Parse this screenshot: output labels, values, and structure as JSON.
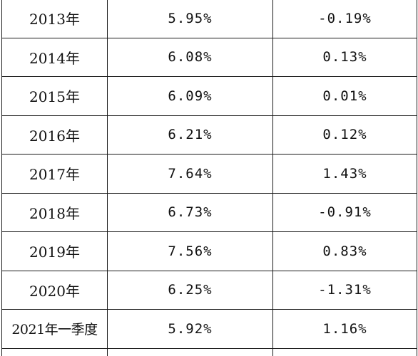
{
  "table": {
    "rows": [
      {
        "year": "2013年",
        "rate": "5.95%",
        "change": "-0.19%"
      },
      {
        "year": "2014年",
        "rate": "6.08%",
        "change": "0.13%"
      },
      {
        "year": "2015年",
        "rate": "6.09%",
        "change": "0.01%"
      },
      {
        "year": "2016年",
        "rate": "6.21%",
        "change": "0.12%"
      },
      {
        "year": "2017年",
        "rate": "7.64%",
        "change": "1.43%"
      },
      {
        "year": "2018年",
        "rate": "6.73%",
        "change": "-0.91%"
      },
      {
        "year": "2019年",
        "rate": "7.56%",
        "change": "0.83%"
      },
      {
        "year": "2020年",
        "rate": "6.25%",
        "change": "-1.31%"
      },
      {
        "year": "2021年一季度",
        "rate": "5.92%",
        "change": "1.16%"
      }
    ]
  }
}
